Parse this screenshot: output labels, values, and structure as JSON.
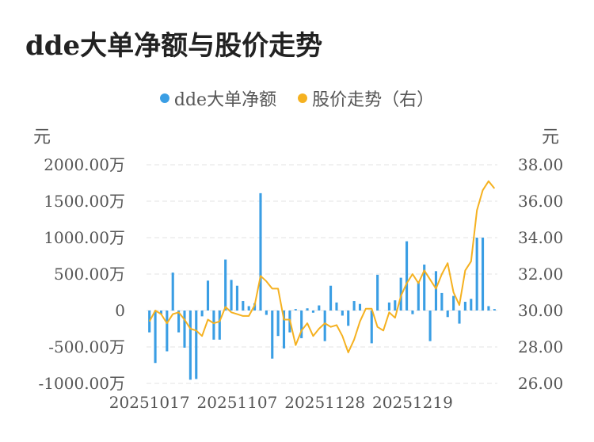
{
  "title": "dde大单净额与股价走势",
  "legend": {
    "bar_label": "dde大单净额",
    "line_label": "股价走势（右）"
  },
  "units": {
    "left": "元",
    "right": "元"
  },
  "colors": {
    "bar": "#3a9ee4",
    "line": "#f5b120",
    "grid": "#e3e3e3"
  },
  "chart_data": {
    "type": "bar+line",
    "y_left": {
      "ticks": [
        "2000.00万",
        "1500.00万",
        "1000.00万",
        "500.00万",
        "0",
        "-500.00万",
        "-1000.00万"
      ],
      "tick_values": [
        2000,
        1500,
        1000,
        500,
        0,
        -500,
        -1000
      ],
      "range": [
        -1000,
        2000
      ],
      "unit": "元"
    },
    "y_right": {
      "ticks": [
        "38.00",
        "36.00",
        "34.00",
        "32.00",
        "30.00",
        "28.00",
        "26.00"
      ],
      "tick_values": [
        38,
        36,
        34,
        32,
        30,
        28,
        26
      ],
      "range": [
        26,
        38
      ],
      "unit": "元"
    },
    "x_tick_labels": [
      {
        "label": "20251017",
        "index": 0
      },
      {
        "label": "20251107",
        "index": 15
      },
      {
        "label": "20251128",
        "index": 30
      },
      {
        "label": "20251219",
        "index": 45
      }
    ],
    "grid": true,
    "series": [
      {
        "name": "dde大单净额",
        "type": "bar",
        "axis": "left",
        "values": [
          -300,
          -720,
          -50,
          -560,
          520,
          -300,
          -510,
          -950,
          -940,
          -80,
          410,
          -400,
          -400,
          700,
          420,
          340,
          130,
          60,
          100,
          1610,
          -60,
          -660,
          -350,
          -520,
          -300,
          20,
          -380,
          30,
          -30,
          70,
          -420,
          340,
          110,
          -70,
          -210,
          130,
          90,
          0,
          -450,
          490,
          0,
          110,
          140,
          450,
          950,
          -50,
          400,
          630,
          -420,
          540,
          240,
          -90,
          200,
          -180,
          120,
          160,
          1000,
          1000,
          60,
          20
        ],
        "unit": "万"
      },
      {
        "name": "股价走势（右）",
        "type": "line",
        "axis": "right",
        "values": [
          29.4,
          30.0,
          29.8,
          29.3,
          29.8,
          29.9,
          29.5,
          29.0,
          28.9,
          28.6,
          29.5,
          29.3,
          29.4,
          30.2,
          29.9,
          29.8,
          29.7,
          29.7,
          30.3,
          31.9,
          31.6,
          31.2,
          31.2,
          29.5,
          29.5,
          28.1,
          28.9,
          29.3,
          28.6,
          29.0,
          29.3,
          29.1,
          29.2,
          28.6,
          27.7,
          28.4,
          29.4,
          30.1,
          30.1,
          29.1,
          28.9,
          29.9,
          29.6,
          30.8,
          31.5,
          32.0,
          31.5,
          32.2,
          31.7,
          31.2,
          32.0,
          32.6,
          31.0,
          30.3,
          32.2,
          32.7,
          35.5,
          36.6,
          37.1,
          36.7
        ]
      }
    ]
  }
}
